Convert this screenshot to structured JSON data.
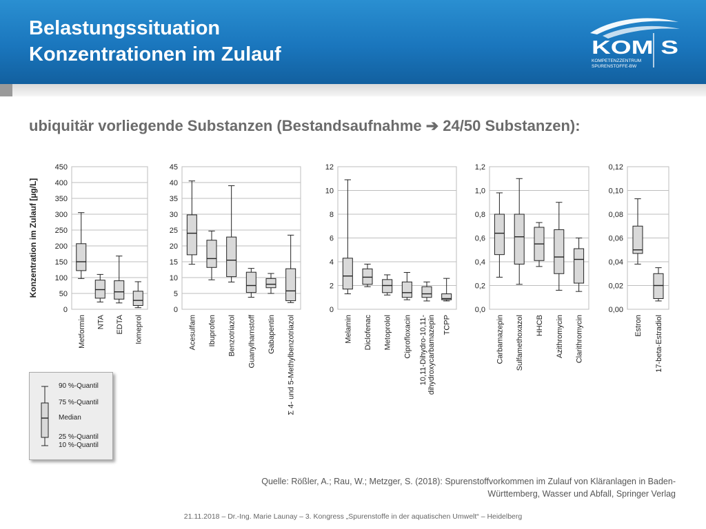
{
  "slide": {
    "title": "Belastungssituation\nKonzentrationen im Zulauf",
    "subtitle": "ubiquitär vorliegende Substanzen (Bestandsaufnahme ➔ 24/50 Substanzen):",
    "source": "Quelle: Rößler, A.; Rau, W.; Metzger, S. (2018): Spurenstoffvorkommen im Zulauf von Kläranlagen in Baden-Württemberg, Wasser und Abfall, Springer Verlag",
    "footer": "21.11.2018 – Dr.-Ing. Marie Launay – 3. Kongress „Spurenstoffe in der aquatischen Umwelt“ – Heidelberg"
  },
  "logo": {
    "wordmark": "KOM S",
    "line1": "KOMPETENZZENTRUM",
    "line2": "SPURENSTOFFE-BW"
  },
  "colors": {
    "header": "#1a76bd",
    "box_fill": "#d9d9d9",
    "grid": "#bdbdbd"
  },
  "legend": {
    "labels": [
      "90 %-Quantil",
      "75 %-Quantil",
      "Median",
      "25 %-Quantil",
      "10 %-Quantil"
    ]
  },
  "chart_data": [
    {
      "type": "boxplot",
      "ylabel": "Konzentration im Zulauf [µg/L]",
      "ylim": [
        0,
        450
      ],
      "yticks": [
        "0",
        "50",
        "100",
        "150",
        "200",
        "250",
        "300",
        "350",
        "400",
        "450"
      ],
      "categories": [
        "Metformin",
        "NTA",
        "EDTA",
        "Iomeprol"
      ],
      "p10": [
        97,
        23,
        20,
        5
      ],
      "q1": [
        122,
        35,
        32,
        12
      ],
      "median": [
        150,
        62,
        55,
        28
      ],
      "q3": [
        207,
        92,
        90,
        57
      ],
      "p90": [
        305,
        110,
        168,
        87
      ]
    },
    {
      "type": "boxplot",
      "ylim": [
        0,
        45
      ],
      "yticks": [
        "0",
        "5",
        "10",
        "15",
        "20",
        "25",
        "30",
        "35",
        "40",
        "45"
      ],
      "categories": [
        "Acesulfam",
        "Ibuprofen",
        "Benzotriazol",
        "Guanylharnstoff",
        "Gabapentin",
        "Σ 4- und 5-Methylbenzotriazol"
      ],
      "p10": [
        14.2,
        9.3,
        8.6,
        3.8,
        5,
        2.1
      ],
      "q1": [
        17.2,
        13.2,
        10.3,
        5.3,
        6.8,
        2.7
      ],
      "median": [
        24,
        16,
        15.5,
        7.5,
        7.9,
        5.8
      ],
      "q3": [
        29.8,
        21.8,
        22.8,
        11.7,
        9.7,
        12.8
      ],
      "p90": [
        40.5,
        24.7,
        39,
        12.9,
        11.3,
        23.4
      ]
    },
    {
      "type": "boxplot",
      "ylim": [
        0,
        12
      ],
      "yticks": [
        "0",
        "2",
        "4",
        "6",
        "8",
        "10",
        "12"
      ],
      "categories": [
        "Melamin",
        "Diclofenac",
        "Metoprolol",
        "Ciprofloxacin",
        "10,11-Dihydro-10,11-dihydroxycarbamazepin",
        "TCPP"
      ],
      "p10": [
        1.3,
        1.9,
        1.2,
        0.8,
        0.7,
        0.7
      ],
      "q1": [
        1.7,
        2.1,
        1.4,
        1,
        1,
        0.8
      ],
      "median": [
        2.8,
        2.7,
        2,
        1.4,
        1.3,
        0.9
      ],
      "q3": [
        4.3,
        3.4,
        2.5,
        2.3,
        1.9,
        1.3
      ],
      "p90": [
        10.9,
        3.8,
        2.9,
        3.1,
        2.3,
        2.6
      ]
    },
    {
      "type": "boxplot",
      "ylim": [
        0,
        1.2
      ],
      "yticks": [
        "0,0",
        "0,2",
        "0,4",
        "0,6",
        "0,8",
        "1,0",
        "1,2"
      ],
      "categories": [
        "Carbamazepin",
        "Sulfamethoxazol",
        "HHCB",
        "Azithromycin",
        "Clarithromycin"
      ],
      "p10": [
        0.27,
        0.21,
        0.36,
        0.16,
        0.15
      ],
      "q1": [
        0.46,
        0.38,
        0.41,
        0.3,
        0.22
      ],
      "median": [
        0.64,
        0.61,
        0.55,
        0.44,
        0.42
      ],
      "q3": [
        0.8,
        0.8,
        0.69,
        0.67,
        0.51
      ],
      "p90": [
        0.98,
        1.1,
        0.73,
        0.9,
        0.6
      ]
    },
    {
      "type": "boxplot",
      "ylim": [
        0,
        0.12
      ],
      "yticks": [
        "0,00",
        "0,02",
        "0,04",
        "0,06",
        "0,08",
        "0,10",
        "0,12"
      ],
      "categories": [
        "Estron",
        "17-beta-Estradiol"
      ],
      "p10": [
        0.038,
        0.007
      ],
      "q1": [
        0.047,
        0.009
      ],
      "median": [
        0.05,
        0.02
      ],
      "q3": [
        0.07,
        0.03
      ],
      "p90": [
        0.093,
        0.035
      ]
    }
  ]
}
